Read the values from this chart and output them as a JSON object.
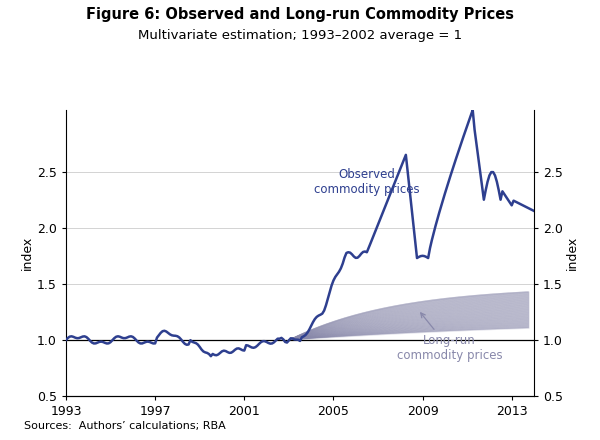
{
  "title": "Figure 6: Observed and Long-run Commodity Prices",
  "subtitle": "Multivariate estimation; 1993–2002 average = 1",
  "ylabel_left": "index",
  "ylabel_right": "index",
  "source_text": "Sources:  Authors’ calculations; RBA",
  "xlim": [
    1993,
    2014
  ],
  "ylim": [
    0.5,
    3.05
  ],
  "yticks": [
    0.5,
    1.0,
    1.5,
    2.0,
    2.5
  ],
  "xticks": [
    1993,
    1997,
    2001,
    2005,
    2009,
    2013
  ],
  "observed_color": "#2e3f8f",
  "longrun_color": "#8888aa",
  "longrun_fill_alpha": 0.25,
  "hline_color": "#000000",
  "background_color": "#ffffff",
  "observed_label": "Observed\ncommodity prices",
  "longrun_label": "Long-run\ncommodity prices",
  "grid_color": "#cccccc",
  "title_fontsize": 10.5,
  "subtitle_fontsize": 9.5,
  "tick_fontsize": 9,
  "annotation_fontsize": 8.5,
  "source_fontsize": 8
}
